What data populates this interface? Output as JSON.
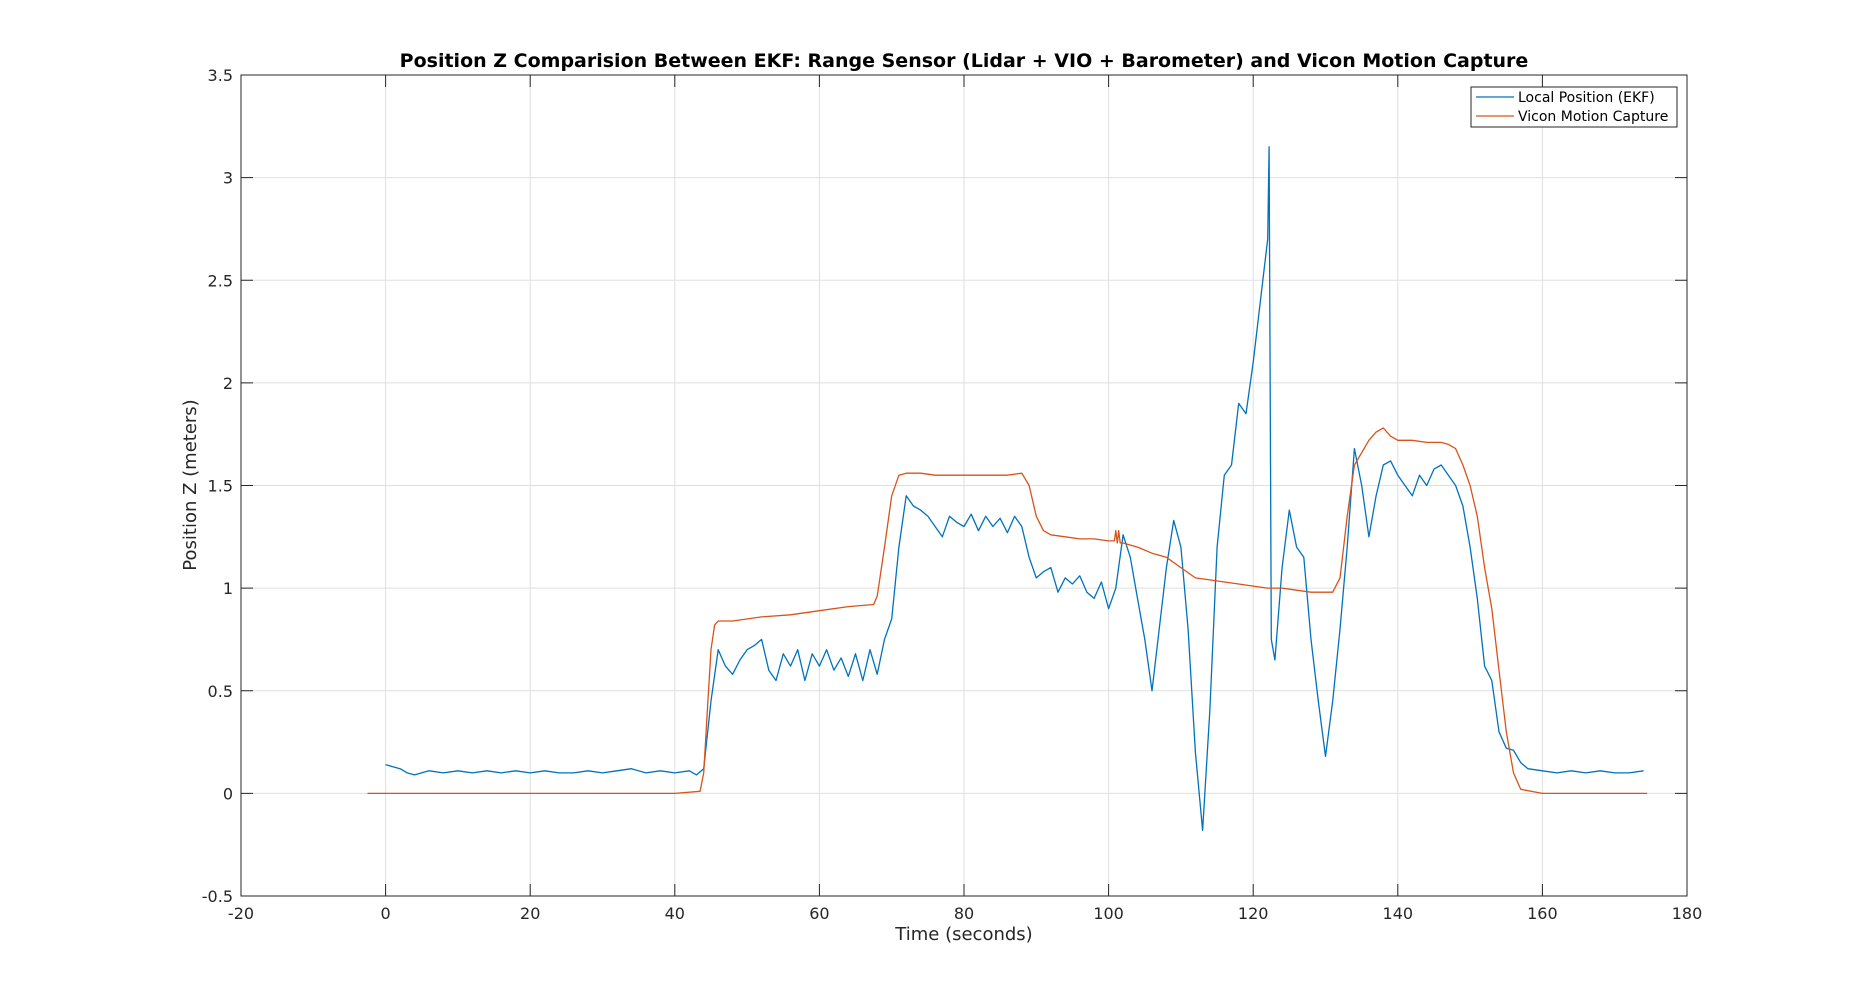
{
  "chart_data": {
    "type": "line",
    "title": "Position Z Comparision Between EKF: Range Sensor (Lidar + VIO + Barometer) and Vicon Motion Capture",
    "xlabel": "Time (seconds)",
    "ylabel": "Position Z (meters)",
    "xlim": [
      -20,
      180
    ],
    "ylim": [
      -0.5,
      3.5
    ],
    "xticks": [
      -20,
      0,
      20,
      40,
      60,
      80,
      100,
      120,
      140,
      160,
      180
    ],
    "yticks": [
      -0.5,
      0,
      0.5,
      1,
      1.5,
      2,
      2.5,
      3,
      3.5
    ],
    "xtick_labels": [
      "-20",
      "0",
      "20",
      "40",
      "60",
      "80",
      "100",
      "120",
      "140",
      "160",
      "180"
    ],
    "ytick_labels": [
      "-0.5",
      "0",
      "0.5",
      "1",
      "1.5",
      "2",
      "2.5",
      "3",
      "3.5"
    ],
    "grid": true,
    "legend_position": "top-right",
    "series": [
      {
        "name": "Local Position (EKF)",
        "color": "#0072bd",
        "x": [
          0,
          1,
          2,
          3,
          4,
          6,
          8,
          10,
          12,
          14,
          16,
          18,
          20,
          22,
          24,
          26,
          28,
          30,
          32,
          34,
          36,
          38,
          40,
          42,
          43,
          44,
          45,
          46,
          47,
          48,
          49,
          50,
          51,
          52,
          53,
          54,
          55,
          56,
          57,
          58,
          59,
          60,
          61,
          62,
          63,
          64,
          65,
          66,
          67,
          68,
          69,
          70,
          71,
          72,
          73,
          74,
          75,
          76,
          77,
          78,
          79,
          80,
          81,
          82,
          83,
          84,
          85,
          86,
          87,
          88,
          89,
          90,
          91,
          92,
          93,
          94,
          95,
          96,
          97,
          98,
          99,
          100,
          101,
          102,
          103,
          104,
          105,
          106,
          107,
          108,
          109,
          110,
          111,
          112,
          113,
          114,
          115,
          116,
          117,
          118,
          119,
          120,
          121,
          122,
          122.2,
          122.5,
          123,
          124,
          125,
          126,
          127,
          128,
          129,
          130,
          131,
          132,
          133,
          134,
          135,
          136,
          137,
          138,
          139,
          140,
          141,
          142,
          143,
          144,
          145,
          146,
          147,
          148,
          149,
          150,
          151,
          152,
          153,
          154,
          155,
          156,
          157,
          158,
          160,
          162,
          164,
          166,
          168,
          170,
          172,
          174
        ],
        "values": [
          0.14,
          0.13,
          0.12,
          0.1,
          0.09,
          0.11,
          0.1,
          0.11,
          0.1,
          0.11,
          0.1,
          0.11,
          0.1,
          0.11,
          0.1,
          0.1,
          0.11,
          0.1,
          0.11,
          0.12,
          0.1,
          0.11,
          0.1,
          0.11,
          0.09,
          0.12,
          0.45,
          0.7,
          0.62,
          0.58,
          0.65,
          0.7,
          0.72,
          0.75,
          0.6,
          0.55,
          0.68,
          0.62,
          0.7,
          0.55,
          0.68,
          0.62,
          0.7,
          0.6,
          0.66,
          0.57,
          0.68,
          0.55,
          0.7,
          0.58,
          0.75,
          0.85,
          1.2,
          1.45,
          1.4,
          1.38,
          1.35,
          1.3,
          1.25,
          1.35,
          1.32,
          1.3,
          1.36,
          1.28,
          1.35,
          1.3,
          1.34,
          1.27,
          1.35,
          1.3,
          1.15,
          1.05,
          1.08,
          1.1,
          0.98,
          1.05,
          1.02,
          1.06,
          0.98,
          0.95,
          1.03,
          0.9,
          1.0,
          1.26,
          1.15,
          0.95,
          0.75,
          0.5,
          0.8,
          1.1,
          1.33,
          1.2,
          0.8,
          0.2,
          -0.18,
          0.4,
          1.2,
          1.55,
          1.6,
          1.9,
          1.85,
          2.1,
          2.4,
          2.7,
          3.15,
          0.75,
          0.65,
          1.1,
          1.38,
          1.2,
          1.15,
          0.75,
          0.45,
          0.18,
          0.45,
          0.8,
          1.2,
          1.68,
          1.5,
          1.25,
          1.45,
          1.6,
          1.62,
          1.55,
          1.5,
          1.45,
          1.55,
          1.5,
          1.58,
          1.6,
          1.55,
          1.5,
          1.4,
          1.2,
          0.95,
          0.62,
          0.55,
          0.3,
          0.22,
          0.21,
          0.15,
          0.12,
          0.11,
          0.1,
          0.11,
          0.1,
          0.11,
          0.1,
          0.1,
          0.11
        ]
      },
      {
        "name": "Vicon Motion Capture",
        "color": "#d95319",
        "x": [
          -2.5,
          0,
          10,
          20,
          30,
          40,
          43.5,
          44,
          44.5,
          45,
          45.5,
          46,
          48,
          52,
          56,
          60,
          64,
          67.5,
          68,
          69,
          70,
          71,
          72,
          74,
          76,
          80,
          84,
          86,
          88,
          89,
          90,
          91,
          92,
          94,
          96,
          98,
          100,
          100.8,
          101,
          101.2,
          101.4,
          101.6,
          102,
          104,
          106,
          108,
          110,
          112,
          114,
          116,
          118,
          120,
          122,
          124,
          126,
          128,
          130,
          131,
          132,
          133,
          134,
          135,
          136,
          137,
          138,
          139,
          140,
          142,
          144,
          146,
          147,
          148,
          149,
          150,
          151,
          152,
          153,
          154,
          155,
          156,
          157,
          160,
          165,
          170,
          174.5
        ],
        "values": [
          0,
          0,
          0,
          0,
          0,
          0,
          0.01,
          0.1,
          0.4,
          0.7,
          0.82,
          0.84,
          0.84,
          0.86,
          0.87,
          0.89,
          0.91,
          0.92,
          0.96,
          1.2,
          1.45,
          1.55,
          1.56,
          1.56,
          1.55,
          1.55,
          1.55,
          1.55,
          1.56,
          1.5,
          1.35,
          1.28,
          1.26,
          1.25,
          1.24,
          1.24,
          1.23,
          1.23,
          1.28,
          1.22,
          1.28,
          1.22,
          1.22,
          1.2,
          1.17,
          1.15,
          1.1,
          1.05,
          1.04,
          1.03,
          1.02,
          1.01,
          1.0,
          1.0,
          0.99,
          0.98,
          0.98,
          0.98,
          1.05,
          1.35,
          1.6,
          1.66,
          1.72,
          1.76,
          1.78,
          1.74,
          1.72,
          1.72,
          1.71,
          1.71,
          1.7,
          1.68,
          1.6,
          1.5,
          1.35,
          1.1,
          0.9,
          0.6,
          0.3,
          0.1,
          0.02,
          0,
          0,
          0,
          0
        ]
      }
    ]
  }
}
